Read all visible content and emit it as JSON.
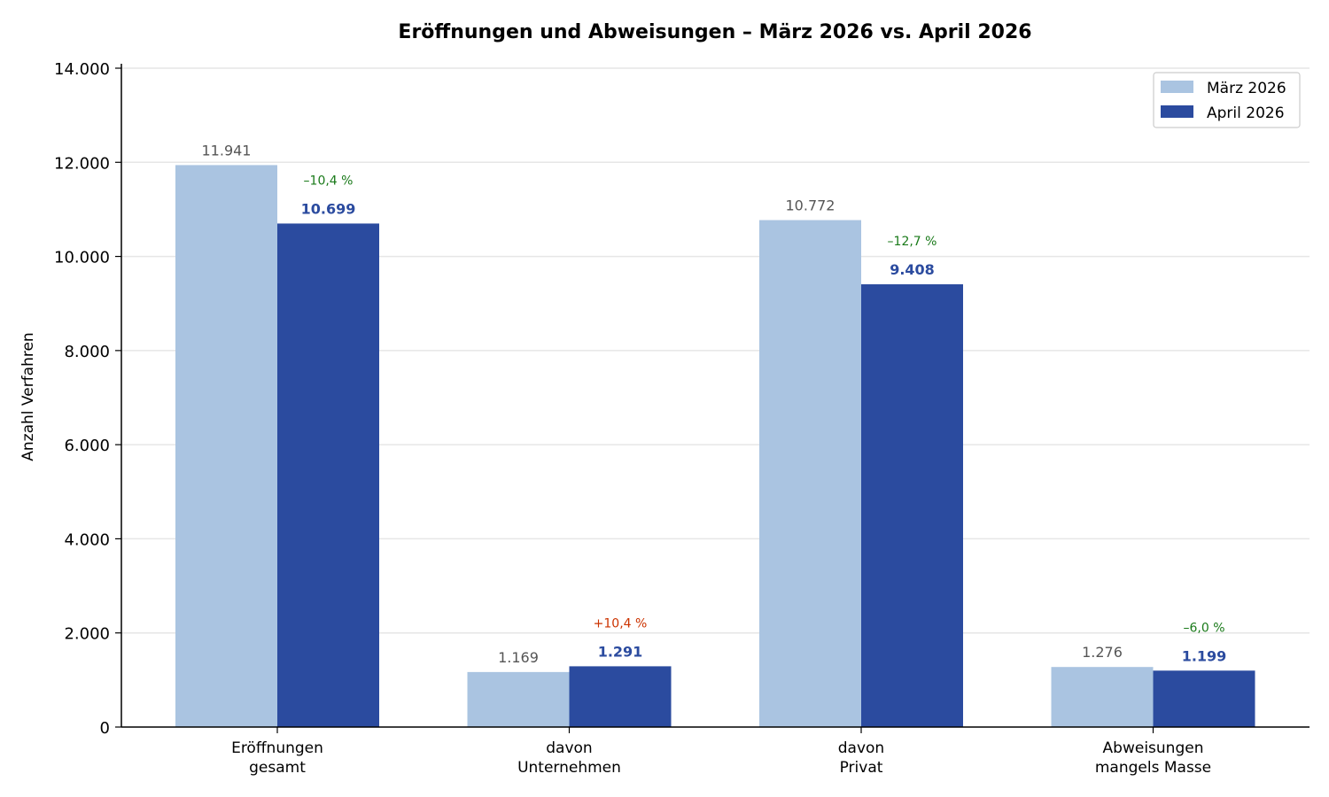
{
  "chart_data": {
    "type": "bar",
    "title": "Eröffnungen und Abweisungen – März 2026 vs. April 2026",
    "xlabel": "",
    "ylabel": "Anzahl Verfahren",
    "ylim": [
      0,
      14000
    ],
    "yticks": [
      0,
      2000,
      4000,
      6000,
      8000,
      10000,
      12000,
      14000
    ],
    "ytick_labels": [
      "0",
      "2.000",
      "4.000",
      "6.000",
      "8.000",
      "10.000",
      "12.000",
      "14.000"
    ],
    "grid": "horizontal",
    "legend_position": "top-right",
    "categories": [
      [
        "Eröffnungen",
        "gesamt"
      ],
      [
        "davon",
        "Unternehmen"
      ],
      [
        "davon",
        "Privat"
      ],
      [
        "Abweisungen",
        "mangels Masse"
      ]
    ],
    "series": [
      {
        "name": "März 2026",
        "color": "#aac4e1",
        "values": [
          11941,
          1169,
          10772,
          1276
        ],
        "labels": [
          "11.941",
          "1.169",
          "10.772",
          "1.276"
        ]
      },
      {
        "name": "April 2026",
        "color": "#2b4b9f",
        "values": [
          10699,
          1291,
          9408,
          1199
        ],
        "labels": [
          "10.699",
          "1.291",
          "9.408",
          "1.199"
        ]
      }
    ],
    "changes": [
      {
        "label": "–10,4 %",
        "color": "#1a7a1a"
      },
      {
        "label": "+10,4 %",
        "color": "#cc3300"
      },
      {
        "label": "–12,7 %",
        "color": "#1a7a1a"
      },
      {
        "label": "–6,0 %",
        "color": "#1a7a1a"
      }
    ]
  }
}
